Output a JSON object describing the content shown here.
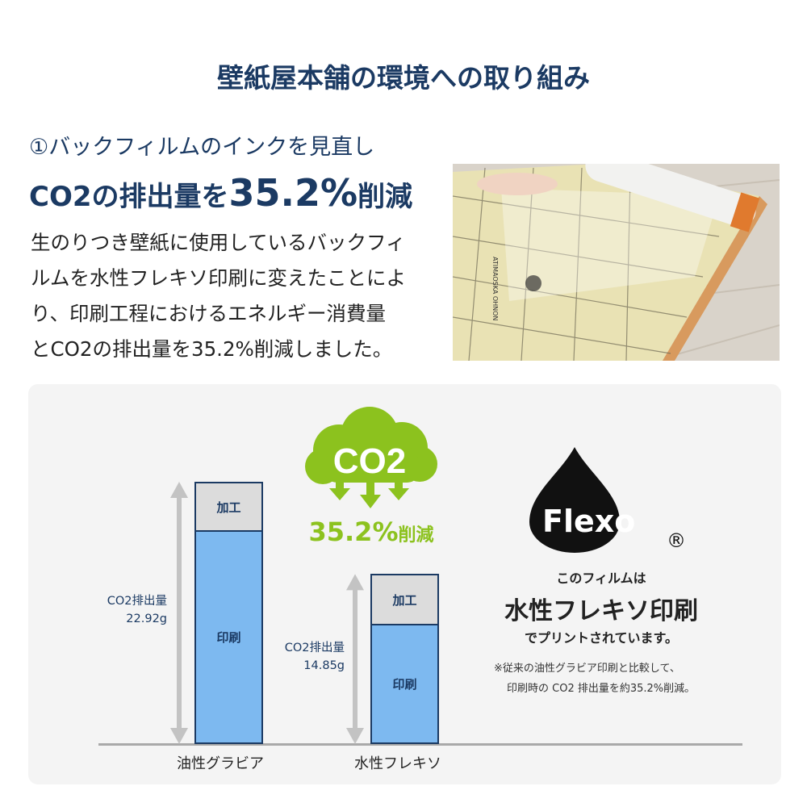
{
  "title": "壁紙屋本舗の環境への取り組み",
  "subtitle": "①バックフィルムのインクを見直し",
  "headline": {
    "prefix": "CO2の排出量を",
    "value": "35.2%",
    "suffix": "削減"
  },
  "body_lines": [
    "生のりつき壁紙に使用しているバックフィ",
    "ルムを水性フレキソ印刷に変えたことによ",
    "り、印刷工程におけるエネルギー消費量",
    "とCO2の排出量を35.2%削減しました。"
  ],
  "photo": {
    "label": "ATIMAOSKA OHNON"
  },
  "badge": {
    "cloud_text": "CO2",
    "reduction": "35.2%",
    "reduction_suffix": "削減",
    "color": "#8cc21e"
  },
  "chart_data": {
    "type": "bar",
    "stacked": true,
    "categories": [
      "油性グラビア",
      "水性フレキソ"
    ],
    "series": [
      {
        "name": "印刷",
        "color": "#7db9f0"
      },
      {
        "name": "加工",
        "color": "#dcdcdc"
      }
    ],
    "totals": [
      22.92,
      14.85
    ],
    "total_labels": [
      {
        "label": "CO2排出量",
        "value": "22.92g"
      },
      {
        "label": "CO2排出量",
        "value": "14.85g"
      }
    ],
    "unit": "g"
  },
  "flexo": {
    "logo_text": "Flexo",
    "registered": "®",
    "line1": "このフィルムは",
    "line2": "水性フレキソ印刷",
    "line3": "でプリントされています。",
    "note1": "※従来の油性グラビア印刷と比較して、",
    "note2": "印刷時の CO2 排出量を約35.2%削減。"
  }
}
